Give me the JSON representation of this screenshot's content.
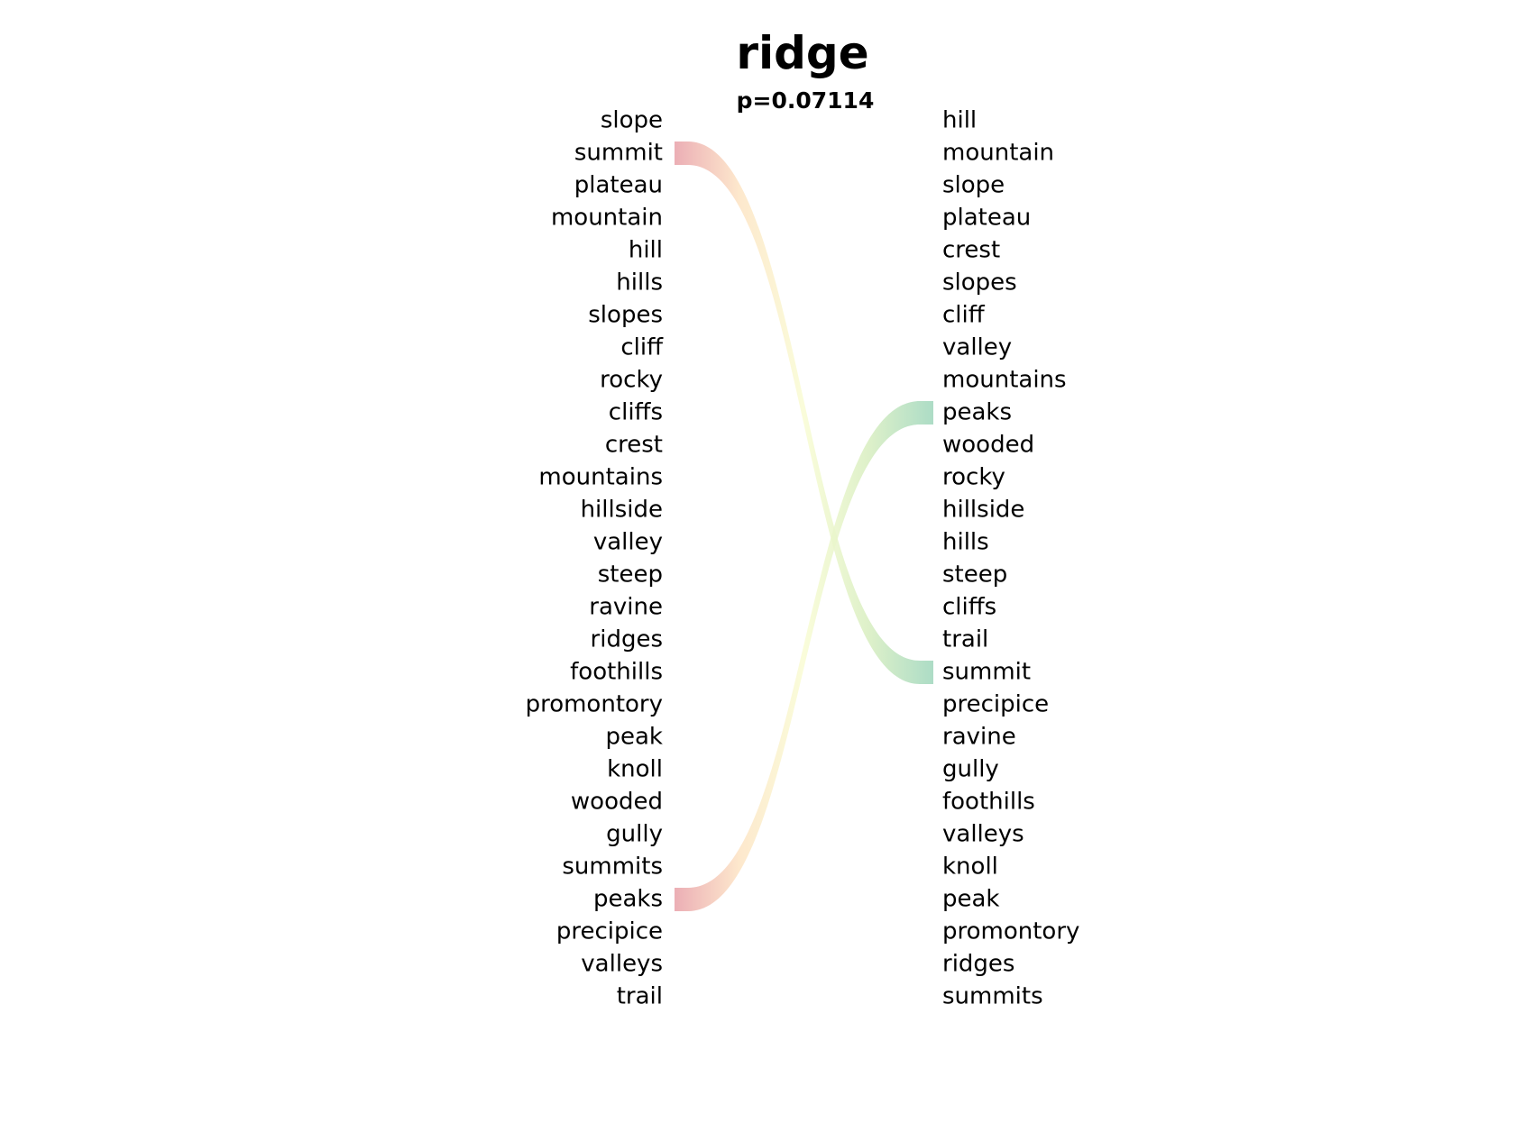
{
  "title": "ridge",
  "subtitle": "p=0.07114",
  "left_words": [
    "slope",
    "summit",
    "plateau",
    "mountain",
    "hill",
    "hills",
    "slopes",
    "cliff",
    "rocky",
    "cliffs",
    "crest",
    "mountains",
    "hillside",
    "valley",
    "steep",
    "ravine",
    "ridges",
    "foothills",
    "promontory",
    "peak",
    "knoll",
    "wooded",
    "gully",
    "summits",
    "peaks",
    "precipice",
    "valleys",
    "trail"
  ],
  "right_words": [
    "hill",
    "mountain",
    "slope",
    "plateau",
    "crest",
    "slopes",
    "cliff",
    "valley",
    "mountains",
    "peaks",
    "wooded",
    "rocky",
    "hillside",
    "hills",
    "steep",
    "cliffs",
    "trail",
    "summit",
    "precipice",
    "ravine",
    "gully",
    "foothills",
    "valleys",
    "knoll",
    "peak",
    "promontory",
    "ridges",
    "summits"
  ],
  "links": [
    {
      "word": "summit",
      "from_rank": 2,
      "to_rank": 18
    },
    {
      "word": "peaks",
      "from_rank": 25,
      "to_rank": 10
    }
  ],
  "colors": {
    "low": "#e8a0a8",
    "mid_low": "#fde4c4",
    "mid": "#f9fcd4",
    "mid_high": "#d8eec0",
    "high": "#9ed6bc"
  }
}
